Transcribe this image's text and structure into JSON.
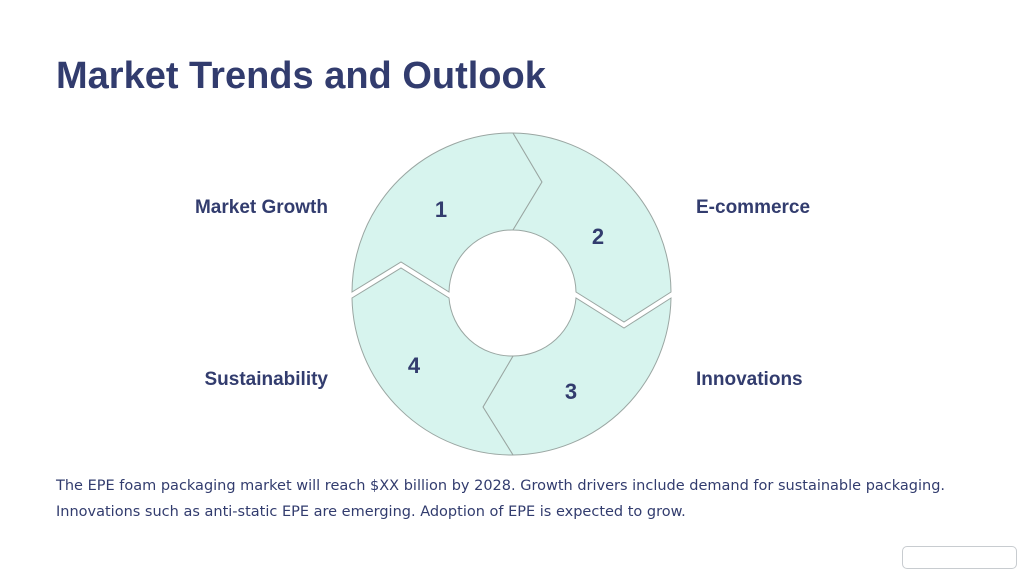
{
  "slide": {
    "title": "Market Trends and Outlook",
    "body": [
      "The EPE foam packaging market will reach $XX billion by 2028. Growth drivers include demand for sustainable packaging.",
      "Innovations such as anti-static EPE are emerging. Adoption of EPE is expected to grow."
    ]
  },
  "cycle": {
    "segments": [
      {
        "number": "1",
        "label": "Market Growth"
      },
      {
        "number": "2",
        "label": "E-commerce"
      },
      {
        "number": "3",
        "label": "Innovations"
      },
      {
        "number": "4",
        "label": "Sustainability"
      }
    ]
  },
  "colors": {
    "title": "#323c6e",
    "segment_fill": "#d7f4ee",
    "segment_stroke": "#9aa6a2"
  }
}
